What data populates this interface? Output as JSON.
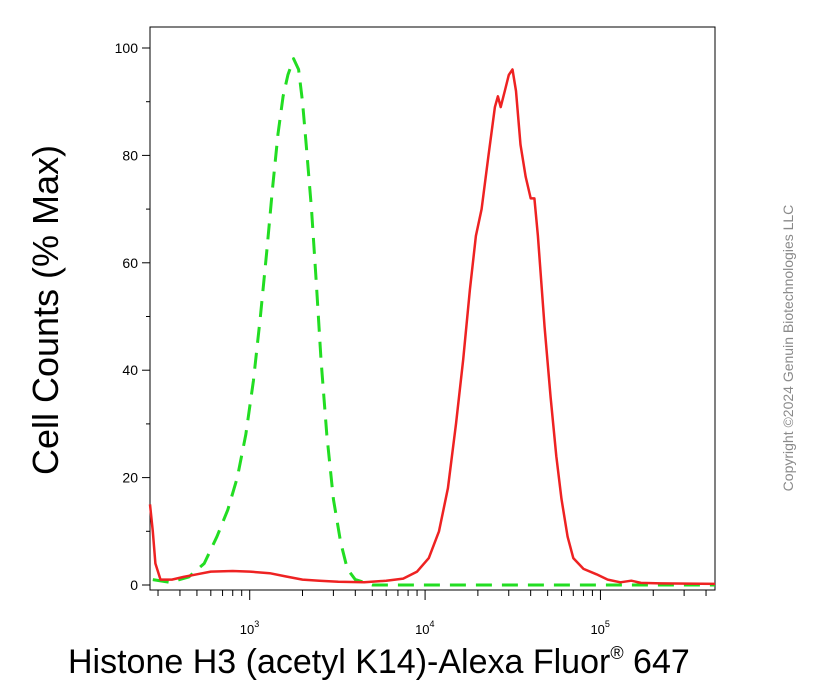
{
  "chart_data": {
    "type": "line",
    "xlabel": "Histone H3 (acetyl K14)-Alexa Fluor",
    "xlabel_sup": "®",
    "xlabel_suffix": " 647",
    "ylabel": "Cell Counts (% Max)",
    "x_scale": "log",
    "xlim": [
      270,
      450000
    ],
    "ylim": [
      0,
      105
    ],
    "y_ticks": [
      "0",
      "20",
      "40",
      "60",
      "80",
      "100"
    ],
    "x_ticks": [
      {
        "value": 1000,
        "base": "10",
        "exp": "3"
      },
      {
        "value": 10000,
        "base": "10",
        "exp": "4"
      },
      {
        "value": 100000,
        "base": "10",
        "exp": "5"
      }
    ],
    "grid": false,
    "series": [
      {
        "color": "#22dd22",
        "style": "dashed",
        "points": [
          [
            280,
            1
          ],
          [
            350,
            0.5
          ],
          [
            450,
            1.5
          ],
          [
            550,
            4
          ],
          [
            650,
            9
          ],
          [
            750,
            14
          ],
          [
            850,
            20
          ],
          [
            950,
            28
          ],
          [
            1050,
            38
          ],
          [
            1150,
            50
          ],
          [
            1250,
            62
          ],
          [
            1350,
            74
          ],
          [
            1450,
            84
          ],
          [
            1550,
            91
          ],
          [
            1650,
            95
          ],
          [
            1780,
            98
          ],
          [
            1900,
            96
          ],
          [
            2000,
            90
          ],
          [
            2100,
            82
          ],
          [
            2250,
            70
          ],
          [
            2400,
            56
          ],
          [
            2550,
            42
          ],
          [
            2750,
            28
          ],
          [
            3000,
            16
          ],
          [
            3300,
            8
          ],
          [
            3600,
            3
          ],
          [
            4000,
            1
          ],
          [
            5000,
            0
          ],
          [
            20000,
            0
          ],
          [
            60000,
            0
          ],
          [
            150000,
            0
          ],
          [
            450000,
            0
          ]
        ]
      },
      {
        "color": "#ee2222",
        "style": "solid",
        "points": [
          [
            270,
            15
          ],
          [
            280,
            10
          ],
          [
            290,
            4
          ],
          [
            310,
            1
          ],
          [
            360,
            1
          ],
          [
            420,
            1.5
          ],
          [
            500,
            2
          ],
          [
            600,
            2.5
          ],
          [
            800,
            2.6
          ],
          [
            1000,
            2.5
          ],
          [
            1300,
            2.2
          ],
          [
            1600,
            1.6
          ],
          [
            2000,
            1
          ],
          [
            2500,
            0.8
          ],
          [
            3200,
            0.6
          ],
          [
            4500,
            0.5
          ],
          [
            6000,
            0.8
          ],
          [
            7500,
            1.2
          ],
          [
            9000,
            2.5
          ],
          [
            10500,
            5
          ],
          [
            12000,
            10
          ],
          [
            13500,
            18
          ],
          [
            15000,
            30
          ],
          [
            16500,
            42
          ],
          [
            18000,
            55
          ],
          [
            19500,
            65
          ],
          [
            21000,
            70
          ],
          [
            23000,
            80
          ],
          [
            25000,
            89
          ],
          [
            26000,
            91
          ],
          [
            27000,
            89
          ],
          [
            28500,
            92
          ],
          [
            30000,
            95
          ],
          [
            31500,
            96
          ],
          [
            33000,
            92
          ],
          [
            35000,
            82
          ],
          [
            37500,
            76
          ],
          [
            40000,
            72
          ],
          [
            42000,
            72
          ],
          [
            44000,
            65
          ],
          [
            48000,
            48
          ],
          [
            52000,
            35
          ],
          [
            56000,
            24
          ],
          [
            60000,
            16
          ],
          [
            65000,
            9
          ],
          [
            70000,
            5
          ],
          [
            80000,
            3
          ],
          [
            95000,
            2
          ],
          [
            110000,
            1
          ],
          [
            130000,
            0.5
          ],
          [
            150000,
            0.8
          ],
          [
            170000,
            0.4
          ],
          [
            220000,
            0.3
          ],
          [
            450000,
            0.2
          ]
        ]
      }
    ]
  },
  "copyright": "Copyright ©2024 Genuin Biotechnologies LLC"
}
